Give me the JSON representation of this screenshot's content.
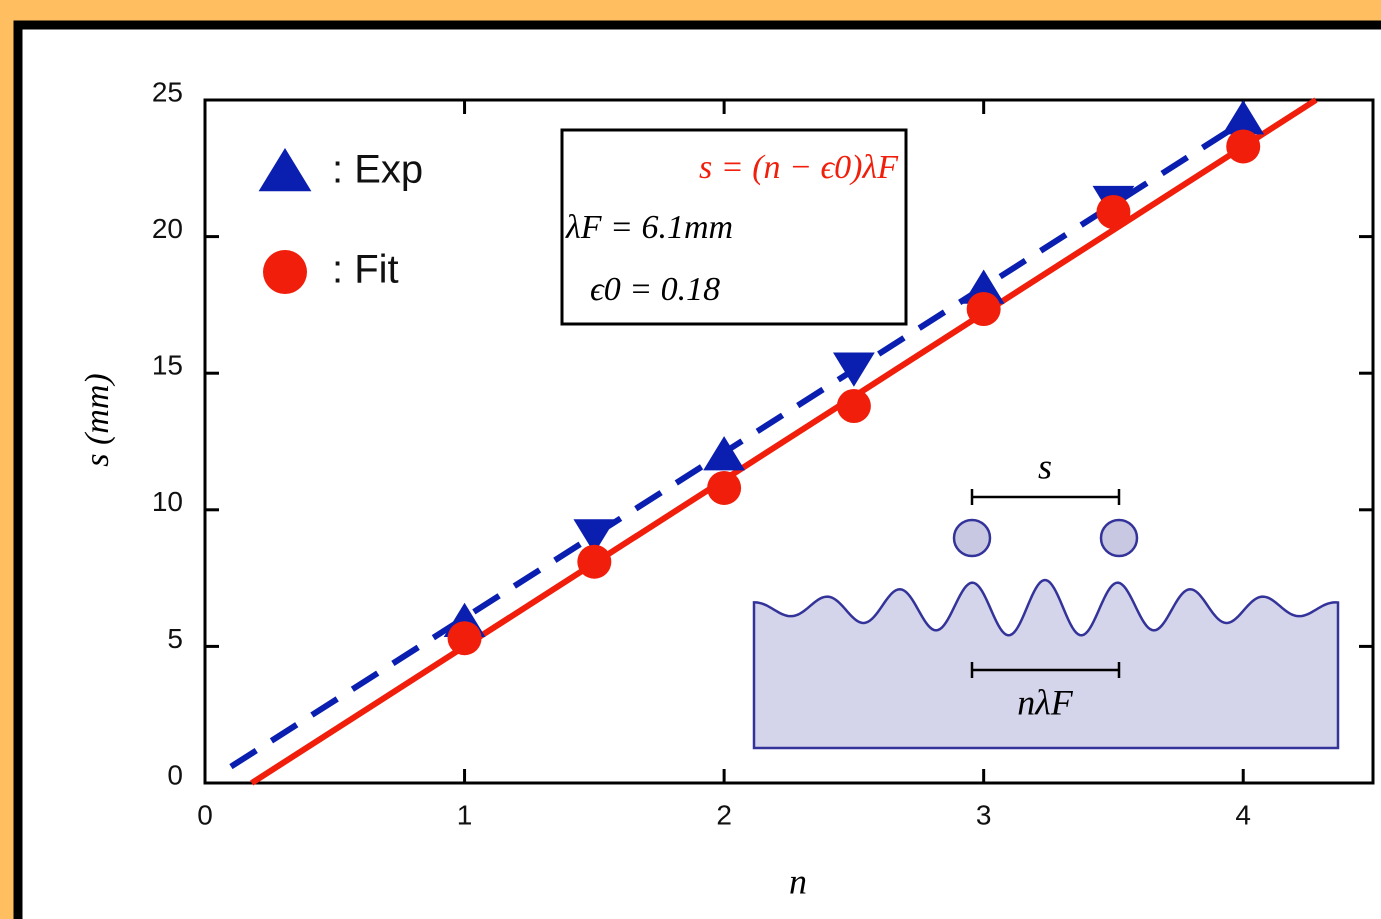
{
  "chart_data": {
    "type": "scatter",
    "xlabel": "n",
    "ylabel": "s (mm)",
    "xlim": [
      0,
      4.5
    ],
    "ylim": [
      0,
      25
    ],
    "xticks": [
      0,
      1,
      2,
      3,
      4
    ],
    "yticks": [
      0,
      5,
      10,
      15,
      20,
      25
    ],
    "legend": "upper left",
    "series": [
      {
        "name": ": Exp",
        "color": "#0a1fb0",
        "marker": "triangle",
        "markers": [
          "up",
          "down",
          "up",
          "down",
          "up",
          "down",
          "up"
        ],
        "x": [
          1,
          1.5,
          2,
          2.5,
          3,
          3.5,
          4
        ],
        "values": [
          5.9,
          9.1,
          12.0,
          15.2,
          18.1,
          21.3,
          24.3
        ]
      },
      {
        "name": ": Fit",
        "color": "#f01e0a",
        "marker": "circle",
        "x": [
          1,
          1.5,
          2,
          2.5,
          3,
          3.5,
          4
        ],
        "values": [
          5.3,
          8.1,
          10.8,
          13.8,
          17.35,
          20.9,
          23.3
        ]
      }
    ],
    "lines": [
      {
        "color": "#0a1fb0",
        "dash": true,
        "x": [
          0.1,
          3.95
        ],
        "values": [
          0.6,
          23.9
        ]
      },
      {
        "color": "#f01e0a",
        "dash": false,
        "x": [
          0.18,
          4.28
        ],
        "values": [
          0,
          25
        ]
      }
    ],
    "annotations": [
      "s = (n − ϵ0)λF",
      "λF = 6.1mm",
      "ϵ0 = 0.18"
    ],
    "inset_labels": [
      "s",
      "nλF"
    ]
  }
}
